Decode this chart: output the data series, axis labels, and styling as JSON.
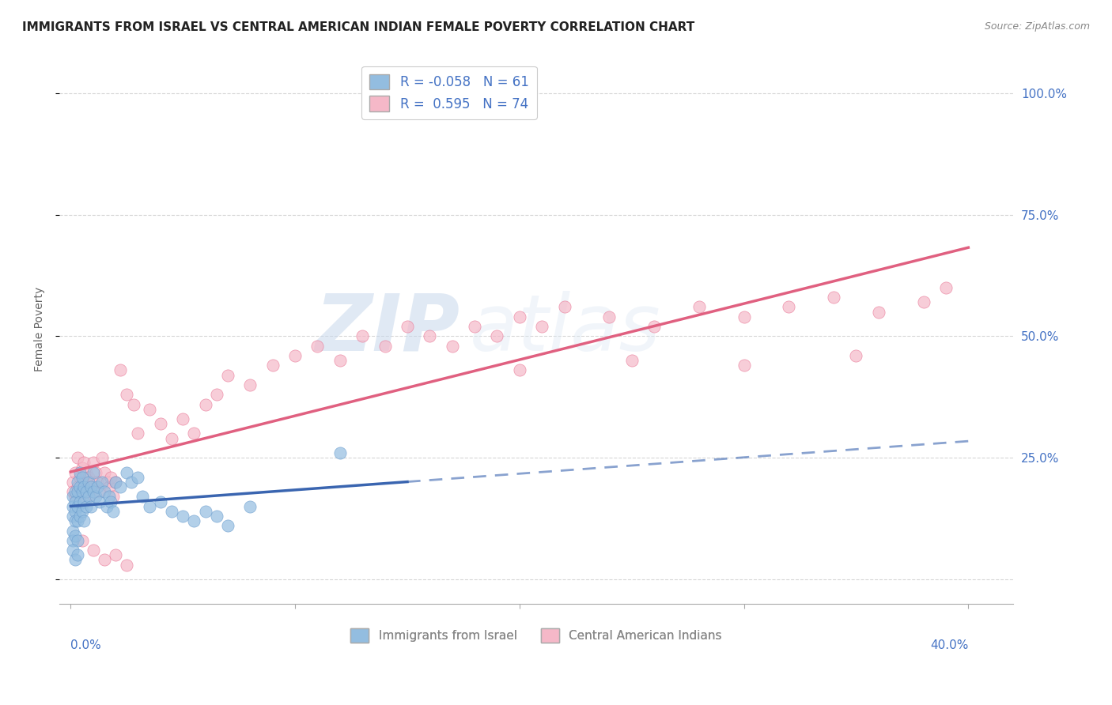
{
  "title": "IMMIGRANTS FROM ISRAEL VS CENTRAL AMERICAN INDIAN FEMALE POVERTY CORRELATION CHART",
  "source": "Source: ZipAtlas.com",
  "ylabel": "Female Poverty",
  "ytick_vals": [
    0.0,
    0.25,
    0.5,
    0.75,
    1.0
  ],
  "ytick_labels": [
    "",
    "25.0%",
    "50.0%",
    "75.0%",
    "100.0%"
  ],
  "xlim": [
    -0.005,
    0.42
  ],
  "ylim": [
    -0.05,
    1.08
  ],
  "series1_label": "Immigrants from Israel",
  "series2_label": "Central American Indians",
  "series1_color": "#93bde0",
  "series2_color": "#f5b8c8",
  "series1_edge": "#6699cc",
  "series2_edge": "#e87090",
  "series1_line_color": "#3a65b0",
  "series2_line_color": "#e06080",
  "series1_R": -0.058,
  "series1_N": 61,
  "series2_R": 0.595,
  "series2_N": 74,
  "watermark_zip": "ZIP",
  "watermark_atlas": "atlas",
  "background_color": "#ffffff",
  "grid_color": "#cccccc",
  "right_tick_color": "#4472c4",
  "solid_cutoff": 0.15,
  "s1_x": [
    0.001,
    0.001,
    0.001,
    0.001,
    0.001,
    0.002,
    0.002,
    0.002,
    0.002,
    0.002,
    0.003,
    0.003,
    0.003,
    0.003,
    0.003,
    0.004,
    0.004,
    0.004,
    0.004,
    0.005,
    0.005,
    0.005,
    0.006,
    0.006,
    0.006,
    0.007,
    0.007,
    0.008,
    0.008,
    0.009,
    0.009,
    0.01,
    0.01,
    0.011,
    0.012,
    0.013,
    0.014,
    0.015,
    0.016,
    0.017,
    0.018,
    0.019,
    0.02,
    0.022,
    0.025,
    0.027,
    0.03,
    0.032,
    0.035,
    0.04,
    0.045,
    0.05,
    0.055,
    0.06,
    0.065,
    0.07,
    0.08,
    0.12,
    0.001,
    0.002,
    0.003
  ],
  "s1_y": [
    0.17,
    0.15,
    0.13,
    0.1,
    0.08,
    0.18,
    0.16,
    0.14,
    0.12,
    0.09,
    0.2,
    0.18,
    0.15,
    0.12,
    0.08,
    0.22,
    0.19,
    0.16,
    0.13,
    0.21,
    0.18,
    0.14,
    0.19,
    0.16,
    0.12,
    0.18,
    0.15,
    0.2,
    0.17,
    0.19,
    0.15,
    0.22,
    0.18,
    0.17,
    0.19,
    0.16,
    0.2,
    0.18,
    0.15,
    0.17,
    0.16,
    0.14,
    0.2,
    0.19,
    0.22,
    0.2,
    0.21,
    0.17,
    0.15,
    0.16,
    0.14,
    0.13,
    0.12,
    0.14,
    0.13,
    0.11,
    0.15,
    0.26,
    0.06,
    0.04,
    0.05
  ],
  "s2_x": [
    0.001,
    0.001,
    0.002,
    0.002,
    0.003,
    0.003,
    0.004,
    0.004,
    0.005,
    0.005,
    0.006,
    0.006,
    0.007,
    0.007,
    0.008,
    0.008,
    0.009,
    0.01,
    0.01,
    0.011,
    0.012,
    0.013,
    0.014,
    0.015,
    0.016,
    0.017,
    0.018,
    0.019,
    0.02,
    0.022,
    0.025,
    0.028,
    0.03,
    0.035,
    0.04,
    0.045,
    0.05,
    0.055,
    0.06,
    0.065,
    0.07,
    0.08,
    0.09,
    0.1,
    0.11,
    0.12,
    0.13,
    0.14,
    0.15,
    0.16,
    0.17,
    0.18,
    0.19,
    0.2,
    0.21,
    0.22,
    0.24,
    0.26,
    0.28,
    0.3,
    0.32,
    0.34,
    0.36,
    0.38,
    0.39,
    0.005,
    0.01,
    0.015,
    0.02,
    0.025,
    0.2,
    0.25,
    0.3,
    0.35
  ],
  "s2_y": [
    0.2,
    0.18,
    0.22,
    0.17,
    0.25,
    0.19,
    0.21,
    0.16,
    0.23,
    0.19,
    0.24,
    0.2,
    0.22,
    0.18,
    0.21,
    0.17,
    0.19,
    0.24,
    0.2,
    0.22,
    0.2,
    0.18,
    0.25,
    0.22,
    0.2,
    0.19,
    0.21,
    0.17,
    0.2,
    0.43,
    0.38,
    0.36,
    0.3,
    0.35,
    0.32,
    0.29,
    0.33,
    0.3,
    0.36,
    0.38,
    0.42,
    0.4,
    0.44,
    0.46,
    0.48,
    0.45,
    0.5,
    0.48,
    0.52,
    0.5,
    0.48,
    0.52,
    0.5,
    0.54,
    0.52,
    0.56,
    0.54,
    0.52,
    0.56,
    0.54,
    0.56,
    0.58,
    0.55,
    0.57,
    0.6,
    0.08,
    0.06,
    0.04,
    0.05,
    0.03,
    0.43,
    0.45,
    0.44,
    0.46
  ]
}
